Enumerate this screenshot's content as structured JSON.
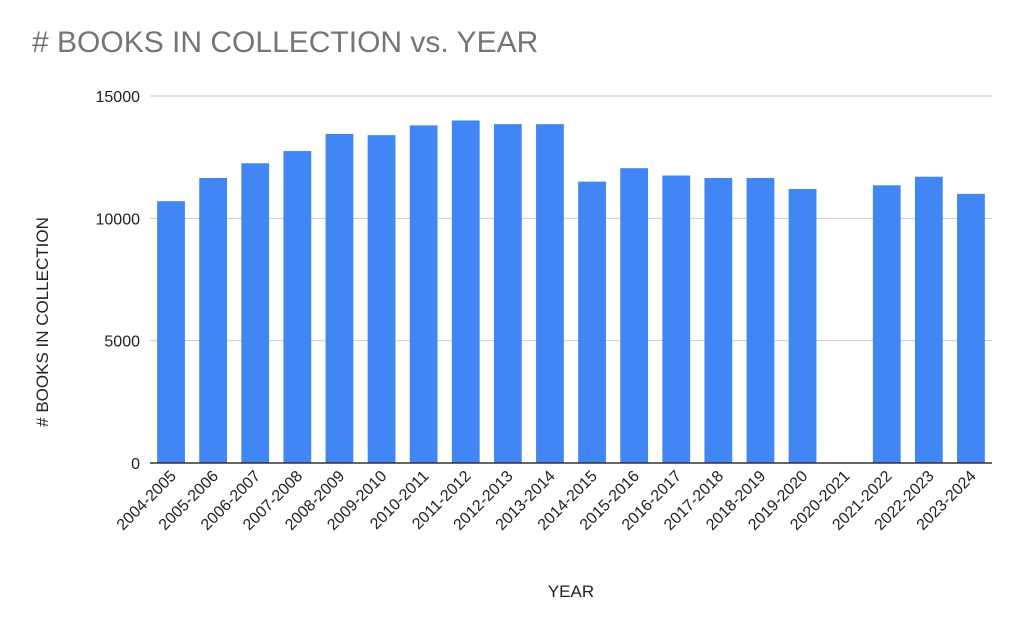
{
  "chart_data": {
    "type": "bar",
    "title": "# BOOKS IN COLLECTION vs. YEAR",
    "xlabel": "YEAR",
    "ylabel": "# BOOKS IN COLLECTION",
    "categories": [
      "2004-2005",
      "2005-2006",
      "2006-2007",
      "2007-2008",
      "2008-2009",
      "2009-2010",
      "2010-2011",
      "2011-2012",
      "2012-2013",
      "2013-2014",
      "2014-2015",
      "2015-2016",
      "2016-2017",
      "2017-2018",
      "2018-2019",
      "2019-2020",
      "2020-2021",
      "2021-2022",
      "2022-2023",
      "2023-2024"
    ],
    "values": [
      10700,
      11650,
      12250,
      12750,
      13450,
      13400,
      13800,
      14000,
      13850,
      13850,
      11500,
      12050,
      11750,
      11650,
      11650,
      11200,
      null,
      11350,
      11700,
      11000
    ],
    "ylim": [
      0,
      15000
    ],
    "yticks": [
      "0",
      "5000",
      "10000",
      "15000"
    ],
    "yticks_values": [
      0,
      5000,
      10000,
      15000
    ],
    "grid": true,
    "legend": "none",
    "bar_color": "#4285f4",
    "grid_color": "#cccccc",
    "axis_color": "#333333"
  }
}
